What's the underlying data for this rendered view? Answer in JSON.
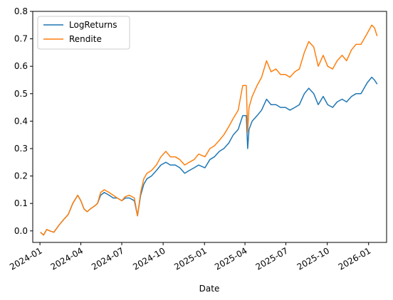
{
  "chart_data": {
    "type": "line",
    "title": "",
    "xlabel": "Date",
    "ylabel": "",
    "xlim": [
      "2023-12-16",
      "2026-02-10"
    ],
    "ylim": [
      -0.042,
      0.8
    ],
    "xticks": [
      {
        "date": "2024-01-01",
        "label": "2024-01"
      },
      {
        "date": "2024-04-01",
        "label": "2024-04"
      },
      {
        "date": "2024-07-01",
        "label": "2024-07"
      },
      {
        "date": "2024-10-01",
        "label": "2024-10"
      },
      {
        "date": "2025-01-01",
        "label": "2025-01"
      },
      {
        "date": "2025-04-01",
        "label": "2025-04"
      },
      {
        "date": "2025-07-01",
        "label": "2025-07"
      },
      {
        "date": "2025-10-01",
        "label": "2025-10"
      },
      {
        "date": "2026-01-01",
        "label": "2026-01"
      }
    ],
    "yticks": [
      {
        "value": 0.0,
        "label": "0.0"
      },
      {
        "value": 0.1,
        "label": "0.1"
      },
      {
        "value": 0.2,
        "label": "0.2"
      },
      {
        "value": 0.3,
        "label": "0.3"
      },
      {
        "value": 0.4,
        "label": "0.4"
      },
      {
        "value": 0.5,
        "label": "0.5"
      },
      {
        "value": 0.6,
        "label": "0.6"
      },
      {
        "value": 0.7,
        "label": "0.7"
      },
      {
        "value": 0.8,
        "label": "0.8"
      }
    ],
    "grid": false,
    "legend": "top-left",
    "series": [
      {
        "name": "LogReturns",
        "color": "#1f77b4",
        "x": [
          "2024-01-02",
          "2024-01-09",
          "2024-01-16",
          "2024-01-23",
          "2024-02-01",
          "2024-02-12",
          "2024-02-22",
          "2024-03-04",
          "2024-03-14",
          "2024-03-25",
          "2024-04-01",
          "2024-04-08",
          "2024-04-15",
          "2024-04-22",
          "2024-05-01",
          "2024-05-08",
          "2024-05-15",
          "2024-05-23",
          "2024-06-03",
          "2024-06-12",
          "2024-06-21",
          "2024-07-01",
          "2024-07-09",
          "2024-07-18",
          "2024-07-29",
          "2024-08-05",
          "2024-08-12",
          "2024-08-19",
          "2024-08-26",
          "2024-09-05",
          "2024-09-16",
          "2024-09-26",
          "2024-10-07",
          "2024-10-17",
          "2024-10-28",
          "2024-11-07",
          "2024-11-18",
          "2024-11-28",
          "2024-12-09",
          "2024-12-19",
          "2025-01-02",
          "2025-01-13",
          "2025-01-23",
          "2025-02-03",
          "2025-02-13",
          "2025-02-24",
          "2025-03-06",
          "2025-03-17",
          "2025-03-27",
          "2025-04-04",
          "2025-04-07",
          "2025-04-10",
          "2025-04-17",
          "2025-04-28",
          "2025-05-08",
          "2025-05-19",
          "2025-05-29",
          "2025-06-09",
          "2025-06-19",
          "2025-06-30",
          "2025-07-10",
          "2025-07-21",
          "2025-07-31",
          "2025-08-11",
          "2025-08-21",
          "2025-09-01",
          "2025-09-11",
          "2025-09-22",
          "2025-10-02",
          "2025-10-13",
          "2025-10-23",
          "2025-11-03",
          "2025-11-13",
          "2025-11-24",
          "2025-12-04",
          "2025-12-15",
          "2025-12-29",
          "2026-01-08",
          "2026-01-14",
          "2026-01-20"
        ],
        "y": [
          -0.005,
          -0.015,
          0.005,
          0.0,
          -0.005,
          0.02,
          0.04,
          0.06,
          0.1,
          0.13,
          0.11,
          0.08,
          0.07,
          0.08,
          0.09,
          0.1,
          0.13,
          0.14,
          0.13,
          0.12,
          0.12,
          0.11,
          0.12,
          0.12,
          0.11,
          0.055,
          0.13,
          0.17,
          0.19,
          0.2,
          0.22,
          0.24,
          0.25,
          0.24,
          0.24,
          0.23,
          0.21,
          0.22,
          0.23,
          0.24,
          0.23,
          0.26,
          0.27,
          0.29,
          0.3,
          0.32,
          0.35,
          0.37,
          0.42,
          0.42,
          0.3,
          0.37,
          0.4,
          0.42,
          0.44,
          0.48,
          0.46,
          0.46,
          0.45,
          0.45,
          0.44,
          0.45,
          0.46,
          0.5,
          0.52,
          0.5,
          0.46,
          0.49,
          0.46,
          0.45,
          0.47,
          0.48,
          0.47,
          0.49,
          0.5,
          0.5,
          0.54,
          0.56,
          0.55,
          0.535
        ]
      },
      {
        "name": "Rendite",
        "color": "#ff7f0e",
        "x": [
          "2024-01-02",
          "2024-01-09",
          "2024-01-16",
          "2024-01-23",
          "2024-02-01",
          "2024-02-12",
          "2024-02-22",
          "2024-03-04",
          "2024-03-14",
          "2024-03-25",
          "2024-04-01",
          "2024-04-08",
          "2024-04-15",
          "2024-04-22",
          "2024-05-01",
          "2024-05-08",
          "2024-05-15",
          "2024-05-23",
          "2024-06-03",
          "2024-06-12",
          "2024-06-21",
          "2024-07-01",
          "2024-07-09",
          "2024-07-18",
          "2024-07-29",
          "2024-08-05",
          "2024-08-12",
          "2024-08-19",
          "2024-08-26",
          "2024-09-05",
          "2024-09-16",
          "2024-09-26",
          "2024-10-07",
          "2024-10-17",
          "2024-10-28",
          "2024-11-07",
          "2024-11-18",
          "2024-11-28",
          "2024-12-09",
          "2024-12-19",
          "2025-01-02",
          "2025-01-13",
          "2025-01-23",
          "2025-02-03",
          "2025-02-13",
          "2025-02-24",
          "2025-03-06",
          "2025-03-17",
          "2025-03-27",
          "2025-04-04",
          "2025-04-07",
          "2025-04-10",
          "2025-04-17",
          "2025-04-28",
          "2025-05-08",
          "2025-05-19",
          "2025-05-29",
          "2025-06-09",
          "2025-06-19",
          "2025-06-30",
          "2025-07-10",
          "2025-07-21",
          "2025-07-31",
          "2025-08-11",
          "2025-08-21",
          "2025-09-01",
          "2025-09-11",
          "2025-09-22",
          "2025-10-02",
          "2025-10-13",
          "2025-10-23",
          "2025-11-03",
          "2025-11-13",
          "2025-11-24",
          "2025-12-04",
          "2025-12-15",
          "2025-12-29",
          "2026-01-08",
          "2026-01-14",
          "2026-01-20"
        ],
        "y": [
          -0.005,
          -0.015,
          0.005,
          0.0,
          -0.005,
          0.02,
          0.04,
          0.06,
          0.1,
          0.13,
          0.11,
          0.08,
          0.07,
          0.08,
          0.09,
          0.1,
          0.14,
          0.15,
          0.14,
          0.13,
          0.12,
          0.11,
          0.125,
          0.13,
          0.12,
          0.055,
          0.14,
          0.19,
          0.21,
          0.22,
          0.24,
          0.27,
          0.29,
          0.27,
          0.27,
          0.26,
          0.24,
          0.25,
          0.26,
          0.28,
          0.27,
          0.3,
          0.31,
          0.33,
          0.35,
          0.38,
          0.41,
          0.44,
          0.53,
          0.53,
          0.36,
          0.45,
          0.49,
          0.53,
          0.56,
          0.62,
          0.58,
          0.59,
          0.57,
          0.57,
          0.56,
          0.58,
          0.59,
          0.65,
          0.69,
          0.67,
          0.6,
          0.64,
          0.6,
          0.59,
          0.62,
          0.64,
          0.62,
          0.66,
          0.68,
          0.68,
          0.72,
          0.75,
          0.74,
          0.71
        ]
      }
    ]
  }
}
